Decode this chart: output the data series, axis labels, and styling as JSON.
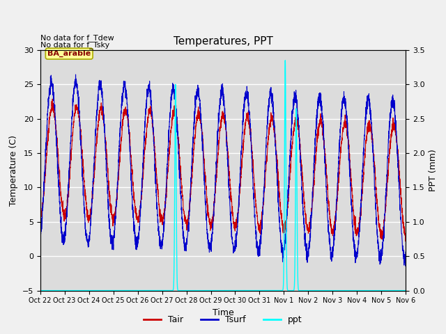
{
  "title": "Temperatures, PPT",
  "xlabel": "Time",
  "ylabel_left": "Temperature (C)",
  "ylabel_right": "PPT (mm)",
  "annotation_line1": "No data for f_Tdew",
  "annotation_line2": "No data for f_Tsky",
  "legend_label": "BA_arable",
  "ylim_left": [
    -5,
    30
  ],
  "ylim_right": [
    0.0,
    3.5
  ],
  "background_color": "#dcdcdc",
  "grid_color": "#ffffff",
  "tair_color": "#cc0000",
  "tsurf_color": "#0000cc",
  "ppt_color": "#00ffff",
  "legend_box_facecolor": "#ffff99",
  "legend_box_edgecolor": "#aaaa00",
  "xtick_labels": [
    "Oct 22",
    "Oct 23",
    "Oct 24",
    "Oct 25",
    "Oct 26",
    "Oct 27",
    "Oct 28",
    "Oct 29",
    "Oct 30",
    "Oct 31",
    "Nov 1",
    "Nov 2",
    "Nov 3",
    "Nov 4",
    "Nov 5",
    "Nov 6"
  ],
  "ytick_labels": [
    -5,
    0,
    5,
    10,
    15,
    20,
    25,
    30
  ],
  "ppt_yticks": [
    0.0,
    0.5,
    1.0,
    1.5,
    2.0,
    2.5,
    3.0,
    3.5
  ],
  "n_points": 3360,
  "duration_days": 15,
  "ppt_spikes": [
    {
      "day": 5.55,
      "value": 3.0
    },
    {
      "day": 10.05,
      "value": 3.35
    },
    {
      "day": 10.5,
      "value": 2.65
    }
  ]
}
